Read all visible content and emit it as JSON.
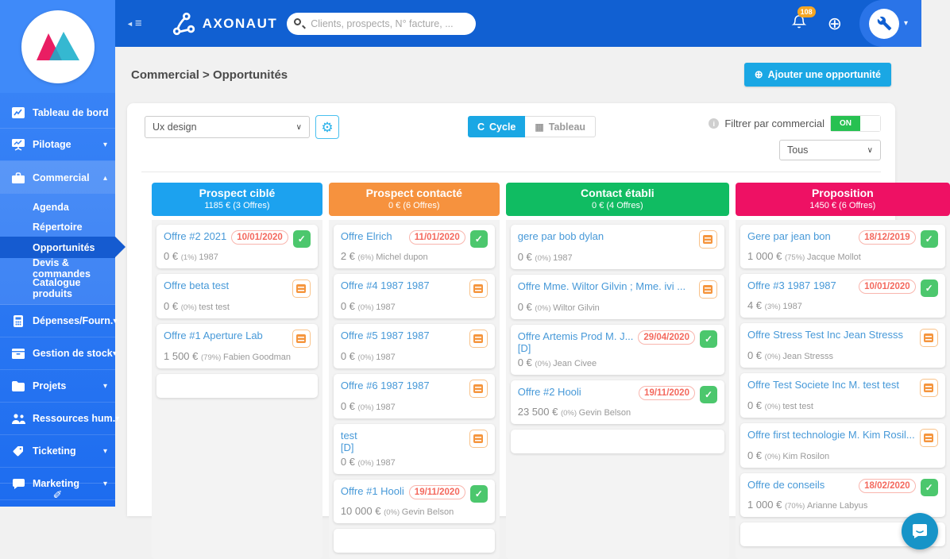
{
  "topbar": {
    "brand": "AXONAUT",
    "search_placeholder": "Clients, prospects, N° facture, ...",
    "notification_count": "108"
  },
  "sidebar": {
    "items": [
      {
        "label": "Tableau de bord",
        "icon": "dashboard-icon"
      },
      {
        "label": "Pilotage",
        "icon": "pilotage-icon"
      },
      {
        "label": "Commercial",
        "icon": "briefcase-icon",
        "children": [
          "Agenda",
          "Répertoire",
          "Opportunités",
          "Devis & commandes",
          "Catalogue produits"
        ],
        "active_child": "Opportunités"
      },
      {
        "label": "Dépenses/Fourn.",
        "icon": "calculator-icon"
      },
      {
        "label": "Gestion de stock",
        "icon": "stock-icon"
      },
      {
        "label": "Projets",
        "icon": "folder-icon"
      },
      {
        "label": "Ressources hum.",
        "icon": "users-icon"
      },
      {
        "label": "Ticketing",
        "icon": "ticket-icon"
      },
      {
        "label": "Marketing",
        "icon": "chat-icon"
      }
    ]
  },
  "page": {
    "breadcrumb": "Commercial > Opportunités",
    "add_button": "Ajouter une opportunité"
  },
  "filters": {
    "pipeline_select": "Ux design",
    "view_cycle": "Cycle",
    "view_table": "Tableau",
    "filter_label": "Filtrer par commercial",
    "toggle_state": "ON",
    "commercial_select": "Tous"
  },
  "colors": {
    "accent_cyan": "#1aa7e4",
    "toggle_green": "#27c151",
    "topbar_blue": "#1160d2",
    "sidebar_blue": "#2e7ef3"
  },
  "kanban": {
    "columns": [
      {
        "title": "Prospect ciblé",
        "subtitle": "1185 € (3 Offres)",
        "color": "#1ca2ef",
        "cards": [
          {
            "title": "Offre #2 2021",
            "date": "10/01/2020",
            "done": true,
            "amount": "0 €",
            "percent": "(1%)",
            "contact": "1987"
          },
          {
            "title": "Offre beta test",
            "calendar": true,
            "amount": "0 €",
            "percent": "(0%)",
            "contact": "test test"
          },
          {
            "title": "Offre #1 Aperture Lab",
            "calendar": true,
            "amount": "1 500 €",
            "percent": "(79%)",
            "contact": "Fabien Goodman"
          },
          {
            "empty": true
          }
        ]
      },
      {
        "title": "Prospect contacté",
        "subtitle": "0 € (6 Offres)",
        "color": "#f6923e",
        "cards": [
          {
            "title": "Offre Elrich",
            "date": "11/01/2020",
            "done": true,
            "amount": "2 €",
            "percent": "(6%)",
            "contact": "Michel dupon"
          },
          {
            "title": "Offre #4 1987 1987",
            "calendar": true,
            "amount": "0 €",
            "percent": "(0%)",
            "contact": "1987"
          },
          {
            "title": "Offre #5 1987 1987",
            "calendar": true,
            "amount": "0 €",
            "percent": "(0%)",
            "contact": "1987"
          },
          {
            "title": "Offre #6 1987 1987",
            "calendar": true,
            "amount": "0 €",
            "percent": "(0%)",
            "contact": "1987"
          },
          {
            "title": "test",
            "title2": "[D]",
            "calendar": true,
            "amount": "0 €",
            "percent": "(0%)",
            "contact": "1987"
          },
          {
            "title": "Offre #1 Hooli",
            "date": "19/11/2020",
            "done": true,
            "amount": "10 000 €",
            "percent": "(0%)",
            "contact": "Gevin Belson"
          },
          {
            "empty": true
          }
        ]
      },
      {
        "title": "Contact établi",
        "subtitle": "0 € (4 Offres)",
        "color": "#10bc62",
        "cards": [
          {
            "title": "gere par bob dylan",
            "calendar": true,
            "amount": "0 €",
            "percent": "(0%)",
            "contact": "1987"
          },
          {
            "title": "Offre Mme. Wiltor Gilvin ; Mme. ivi ...",
            "calendar": true,
            "amount": "0 €",
            "percent": "(0%)",
            "contact": "Wiltor Gilvin"
          },
          {
            "title": "Offre Artemis Prod M. J...",
            "title2": "[D]",
            "date": "29/04/2020",
            "done": true,
            "amount": "0 €",
            "percent": "(0%)",
            "contact": "Jean Civee"
          },
          {
            "title": "Offre #2 Hooli",
            "date": "19/11/2020",
            "done": true,
            "amount": "23 500 €",
            "percent": "(0%)",
            "contact": "Gevin Belson"
          },
          {
            "empty": true
          }
        ]
      },
      {
        "title": "Proposition",
        "subtitle": "1450 € (6 Offres)",
        "color": "#ee1164",
        "cards": [
          {
            "title": "Gere par jean bon",
            "date": "18/12/2019",
            "done": true,
            "amount": "1 000 €",
            "percent": "(75%)",
            "contact": "Jacque Mollot"
          },
          {
            "title": "Offre #3 1987 1987",
            "date": "10/01/2020",
            "done": true,
            "amount": "4 €",
            "percent": "(3%)",
            "contact": "1987"
          },
          {
            "title": "Offre Stress Test Inc Jean Stresss",
            "calendar": true,
            "amount": "0 €",
            "percent": "(0%)",
            "contact": "Jean Stresss"
          },
          {
            "title": "Offre Test Societe Inc M. test test",
            "calendar": true,
            "amount": "0 €",
            "percent": "(0%)",
            "contact": "test test"
          },
          {
            "title": "Offre first technologie M. Kim Rosil...",
            "calendar": true,
            "amount": "0 €",
            "percent": "(0%)",
            "contact": "Kim Rosilon"
          },
          {
            "title": "Offre de conseils",
            "date": "18/02/2020",
            "done": true,
            "amount": "1 000 €",
            "percent": "(70%)",
            "contact": "Arianne Labyus"
          },
          {
            "empty": true
          }
        ]
      }
    ]
  }
}
